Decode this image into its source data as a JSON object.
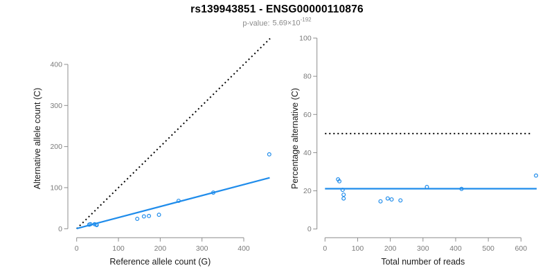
{
  "header": {
    "title": "rs139943851 - ENSG00000110876",
    "pvalue_label": "p-value:",
    "pvalue_base": "5.69×10",
    "pvalue_exponent": "-192"
  },
  "colors": {
    "accent_blue": "#1f8ceb",
    "dotted_black": "#000000",
    "axis_line": "#8c8c8c",
    "tick_text": "#7a7a7a",
    "axis_title_text": "#1a1a1a",
    "subtitle_gray": "#8a8a8a"
  },
  "chart_data": [
    {
      "type": "scatter",
      "name": "allele-counts",
      "xlabel": "Reference allele count (G)",
      "ylabel": "Alternative allele count (C)",
      "xticks": [
        0,
        100,
        200,
        300,
        400
      ],
      "yticks": [
        0,
        100,
        200,
        300,
        400
      ],
      "xlim": [
        0,
        475
      ],
      "ylim": [
        0,
        475
      ],
      "grid": false,
      "legend": "none",
      "points": [
        [
          30,
          10
        ],
        [
          33,
          11
        ],
        [
          43,
          11
        ],
        [
          47,
          10
        ],
        [
          48,
          9
        ],
        [
          145,
          24
        ],
        [
          161,
          30
        ],
        [
          173,
          31
        ],
        [
          197,
          34
        ],
        [
          244,
          68
        ],
        [
          327,
          88
        ],
        [
          461,
          181
        ]
      ],
      "lines": [
        {
          "name": "identity-line",
          "style": "dotted",
          "color": "#000000",
          "slope": 1,
          "intercept": 0,
          "x_range": [
            0,
            463
          ]
        },
        {
          "name": "regression-line",
          "style": "solid",
          "color": "#1f8ceb",
          "slope": 0.2674,
          "intercept": 0.5,
          "x_range": [
            0,
            462
          ]
        }
      ]
    },
    {
      "type": "scatter",
      "name": "percentage-alternative",
      "xlabel": "Total number of reads",
      "ylabel": "Percentage alternative (C)",
      "xticks": [
        0,
        100,
        200,
        300,
        400,
        500,
        600
      ],
      "yticks": [
        0,
        20,
        40,
        60,
        80,
        100
      ],
      "xlim": [
        0,
        660
      ],
      "ylim": [
        0,
        100
      ],
      "grid": false,
      "legend": "none",
      "points": [
        [
          40,
          26
        ],
        [
          44,
          25
        ],
        [
          54,
          20.5
        ],
        [
          57,
          18
        ],
        [
          57,
          16
        ],
        [
          170,
          14.5
        ],
        [
          192,
          16
        ],
        [
          204,
          15.5
        ],
        [
          231,
          15
        ],
        [
          312,
          22
        ],
        [
          418,
          21
        ],
        [
          646,
          28
        ]
      ],
      "lines": [
        {
          "name": "fifty-percent-line",
          "style": "dotted",
          "color": "#000000",
          "slope": 0,
          "intercept": 50,
          "x_range": [
            0,
            630
          ]
        },
        {
          "name": "mean-percentage-line",
          "style": "solid",
          "color": "#1f8ceb",
          "slope": 0,
          "intercept": 21.1,
          "x_range": [
            0,
            648
          ]
        }
      ]
    }
  ]
}
